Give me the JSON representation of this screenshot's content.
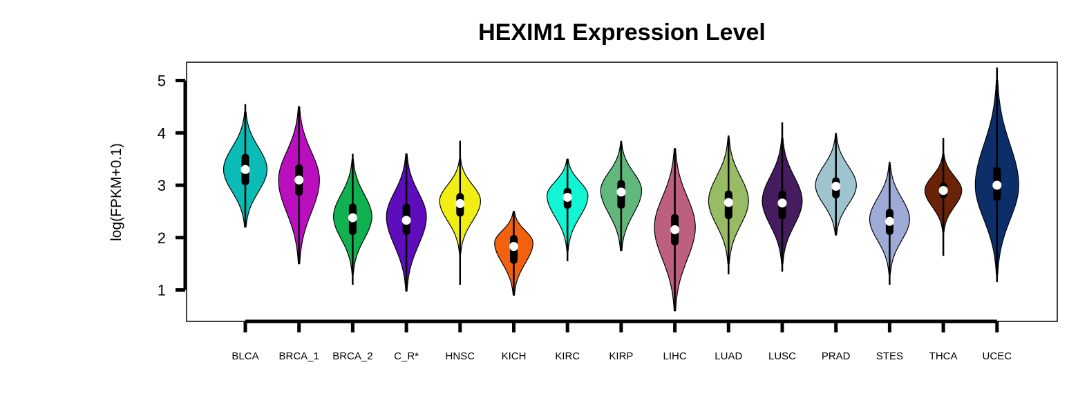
{
  "chart_data": {
    "type": "violin",
    "title": "HEXIM1 Expression Level",
    "ylabel": "log(FPKM+0.1)",
    "xlabel": "",
    "ylim": [
      0.4,
      5.35
    ],
    "yticks": [
      1,
      2,
      3,
      4,
      5
    ],
    "grid": false,
    "legend": "none",
    "categories": [
      "BLCA",
      "BRCA_1",
      "BRCA_2",
      "C_R*",
      "HNSC",
      "KICH",
      "KIRC",
      "KIRP",
      "LIHC",
      "LUAD",
      "LUSC",
      "PRAD",
      "STES",
      "THCA",
      "UCEC"
    ],
    "series": [
      {
        "category": "BLCA",
        "color": "#0bbcb6",
        "min": 2.2,
        "q1": 3.0,
        "median": 3.3,
        "q3": 3.6,
        "max": 4.55,
        "vmin": 2.2,
        "vmax": 4.4,
        "mode": 3.3,
        "width": 0.85
      },
      {
        "category": "BRCA_1",
        "color": "#b90fbe",
        "min": 1.5,
        "q1": 2.8,
        "median": 3.1,
        "q3": 3.4,
        "max": 4.5,
        "vmin": 1.5,
        "vmax": 4.5,
        "mode": 3.1,
        "width": 0.8
      },
      {
        "category": "BRCA_2",
        "color": "#11b050",
        "min": 1.1,
        "q1": 2.05,
        "median": 2.38,
        "q3": 2.65,
        "max": 3.6,
        "vmin": 1.3,
        "vmax": 3.5,
        "mode": 2.4,
        "width": 0.75
      },
      {
        "category": "C_R*",
        "color": "#5d0dbb",
        "min": 0.98,
        "q1": 2.05,
        "median": 2.33,
        "q3": 2.65,
        "max": 3.6,
        "vmin": 0.98,
        "vmax": 3.6,
        "mode": 2.4,
        "width": 0.78
      },
      {
        "category": "HNSC",
        "color": "#f0ee14",
        "min": 1.1,
        "q1": 2.4,
        "median": 2.65,
        "q3": 2.85,
        "max": 3.85,
        "vmin": 1.7,
        "vmax": 3.5,
        "mode": 2.7,
        "width": 0.8
      },
      {
        "category": "KICH",
        "color": "#f2610f",
        "min": 0.9,
        "q1": 1.5,
        "median": 1.83,
        "q3": 2.05,
        "max": 2.5,
        "vmin": 0.9,
        "vmax": 2.5,
        "mode": 1.9,
        "width": 0.75
      },
      {
        "category": "KIRC",
        "color": "#12f4d4",
        "min": 1.55,
        "q1": 2.55,
        "median": 2.77,
        "q3": 2.95,
        "max": 3.5,
        "vmin": 1.75,
        "vmax": 3.5,
        "mode": 2.8,
        "width": 0.8
      },
      {
        "category": "KIRP",
        "color": "#62b87c",
        "min": 1.75,
        "q1": 2.55,
        "median": 2.87,
        "q3": 3.1,
        "max": 3.85,
        "vmin": 1.75,
        "vmax": 3.8,
        "mode": 2.9,
        "width": 0.8
      },
      {
        "category": "LIHC",
        "color": "#bd5f7f",
        "min": 0.6,
        "q1": 1.85,
        "median": 2.15,
        "q3": 2.45,
        "max": 3.7,
        "vmin": 0.6,
        "vmax": 3.7,
        "mode": 2.2,
        "width": 0.8
      },
      {
        "category": "LUAD",
        "color": "#97bc65",
        "min": 1.3,
        "q1": 2.35,
        "median": 2.67,
        "q3": 2.9,
        "max": 3.95,
        "vmin": 1.5,
        "vmax": 3.9,
        "mode": 2.7,
        "width": 0.78
      },
      {
        "category": "LUSC",
        "color": "#451c5e",
        "min": 1.35,
        "q1": 2.35,
        "median": 2.66,
        "q3": 2.9,
        "max": 4.2,
        "vmin": 1.5,
        "vmax": 3.9,
        "mode": 2.7,
        "width": 0.78
      },
      {
        "category": "PRAD",
        "color": "#9fc4cf",
        "min": 2.05,
        "q1": 2.75,
        "median": 2.98,
        "q3": 3.15,
        "max": 4.0,
        "vmin": 2.05,
        "vmax": 3.95,
        "mode": 3.0,
        "width": 0.8
      },
      {
        "category": "STES",
        "color": "#9eabd6",
        "min": 1.1,
        "q1": 2.05,
        "median": 2.31,
        "q3": 2.55,
        "max": 3.45,
        "vmin": 1.3,
        "vmax": 3.4,
        "mode": 2.35,
        "width": 0.78
      },
      {
        "category": "THCA",
        "color": "#6a2309",
        "min": 1.65,
        "q1": 2.75,
        "median": 2.9,
        "q3": 3.05,
        "max": 3.9,
        "vmin": 2.1,
        "vmax": 3.6,
        "mode": 2.9,
        "width": 0.72
      },
      {
        "category": "UCEC",
        "color": "#0c2f6a",
        "min": 1.15,
        "q1": 2.7,
        "median": 3.0,
        "q3": 3.35,
        "max": 5.25,
        "vmin": 1.3,
        "vmax": 5.0,
        "mode": 3.0,
        "width": 0.85
      }
    ]
  }
}
